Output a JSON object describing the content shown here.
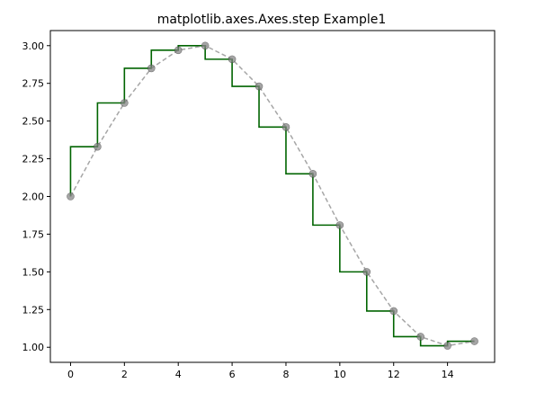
{
  "chart_data": {
    "type": "line",
    "title": "matplotlib.axes.Axes.step Example1",
    "xlabel": "",
    "ylabel": "",
    "xlim": [
      -0.75,
      15.75
    ],
    "ylim": [
      0.9,
      3.1
    ],
    "xticks": [
      0,
      2,
      4,
      6,
      8,
      10,
      12,
      14
    ],
    "yticks": [
      1.0,
      1.25,
      1.5,
      1.75,
      2.0,
      2.25,
      2.5,
      2.75,
      3.0
    ],
    "ytick_labels": [
      "1.00",
      "1.25",
      "1.50",
      "1.75",
      "2.00",
      "2.25",
      "2.50",
      "2.75",
      "3.00"
    ],
    "grid": false,
    "series": [
      {
        "style": "step-pre",
        "color": "#006400",
        "x": [
          0,
          1,
          2,
          3,
          4,
          5,
          6,
          7,
          8,
          9,
          10,
          11,
          12,
          13,
          14,
          15
        ],
        "y": [
          2.0,
          2.33,
          2.62,
          2.85,
          2.97,
          3.0,
          2.91,
          2.73,
          2.46,
          2.15,
          1.81,
          1.5,
          1.24,
          1.07,
          1.01,
          1.04
        ]
      },
      {
        "style": "dashed-markers",
        "color": "#808080",
        "x": [
          0,
          1,
          2,
          3,
          4,
          5,
          6,
          7,
          8,
          9,
          10,
          11,
          12,
          13,
          14,
          15
        ],
        "y": [
          2.0,
          2.33,
          2.62,
          2.85,
          2.97,
          3.0,
          2.91,
          2.73,
          2.46,
          2.15,
          1.81,
          1.5,
          1.24,
          1.07,
          1.01,
          1.04
        ]
      }
    ]
  }
}
